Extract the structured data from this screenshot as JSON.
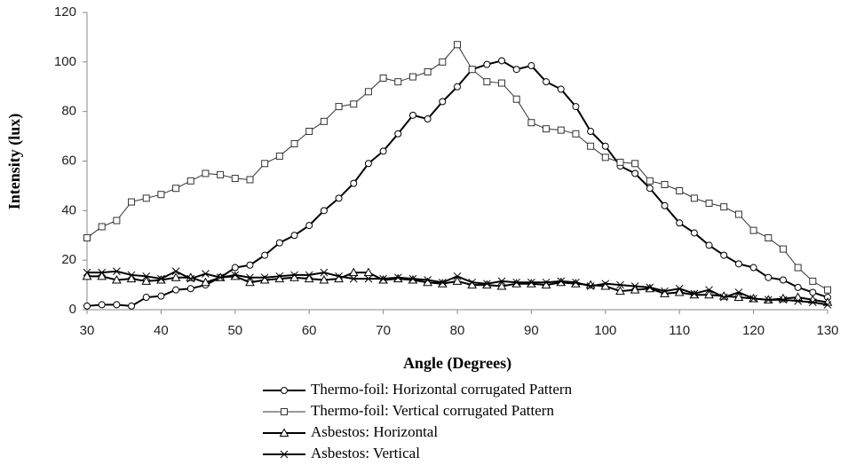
{
  "chart_data": {
    "type": "line",
    "x_label": "Angle (Degrees)",
    "y_label": "Intensity (lux)",
    "x": [
      30,
      32,
      34,
      36,
      38,
      40,
      42,
      44,
      46,
      48,
      50,
      52,
      54,
      56,
      58,
      60,
      62,
      64,
      66,
      68,
      70,
      72,
      74,
      76,
      78,
      80,
      82,
      84,
      86,
      88,
      90,
      92,
      94,
      96,
      98,
      100,
      102,
      104,
      106,
      108,
      110,
      112,
      114,
      116,
      118,
      120,
      122,
      124,
      126,
      128,
      130
    ],
    "xlim": [
      30,
      130
    ],
    "xticks": [
      30,
      40,
      50,
      60,
      70,
      80,
      90,
      100,
      110,
      120,
      130
    ],
    "ylim": [
      0,
      120
    ],
    "yticks": [
      0,
      20,
      40,
      60,
      80,
      100,
      120
    ],
    "grid": false,
    "legend": "bottom",
    "series": [
      {
        "name": "Thermo-foil: Horizontal corrugated Pattern",
        "color": "#000000",
        "line_width": 2,
        "marker": "circle",
        "values": [
          1.5,
          2,
          2,
          1.5,
          5,
          5.5,
          8,
          8.5,
          10,
          13,
          17,
          18,
          22,
          27,
          30,
          34,
          40,
          45,
          51,
          59,
          64,
          71,
          78.5,
          77,
          84,
          90,
          97,
          99,
          100.5,
          97,
          98.5,
          92,
          89,
          82,
          72,
          66,
          58,
          55,
          49,
          42,
          35,
          31,
          26,
          22,
          18.5,
          17,
          13,
          12,
          9,
          7,
          5
        ]
      },
      {
        "name": "Thermo-foil: Vertical corrugated Pattern",
        "color": "#333333",
        "line_width": 1,
        "marker": "square",
        "values": [
          29,
          33.5,
          36,
          43.5,
          45,
          46.5,
          49,
          52,
          55,
          54.5,
          53,
          52.5,
          59,
          62,
          67,
          72,
          76,
          82,
          83,
          88,
          93.5,
          92,
          94,
          96,
          100,
          107,
          97,
          92,
          91.5,
          85,
          75.5,
          73,
          72.5,
          71,
          66,
          61.5,
          59.5,
          59,
          52,
          50.5,
          48,
          45,
          43,
          41.5,
          38.5,
          32,
          29,
          24.5,
          17,
          11.5,
          8
        ]
      },
      {
        "name": "Asbestos: Horizontal",
        "color": "#000000",
        "line_width": 2,
        "marker": "triangle",
        "values": [
          13.5,
          13.5,
          12,
          12.5,
          11.5,
          12,
          13,
          13,
          11,
          13,
          13.5,
          11,
          12,
          12.5,
          13,
          12.5,
          12,
          12.5,
          15,
          15,
          12,
          12.5,
          12,
          11,
          10.5,
          11.5,
          10,
          10,
          9.5,
          10.5,
          10.5,
          10,
          11,
          10.5,
          10,
          9.5,
          7.5,
          8,
          8.5,
          6.5,
          7,
          6,
          6,
          5.5,
          5,
          4.5,
          4,
          4.5,
          5,
          4,
          3
        ]
      },
      {
        "name": "Asbestos: Vertical",
        "color": "#000000",
        "line_width": 2,
        "marker": "cross",
        "values": [
          15,
          15,
          15.5,
          14,
          13.5,
          12.5,
          15.5,
          12.5,
          14.5,
          13,
          14,
          13,
          13,
          13.5,
          14,
          14,
          15,
          13.5,
          12.5,
          12.5,
          12.5,
          13,
          12.5,
          12,
          11,
          13.5,
          11,
          10.5,
          11.5,
          11,
          11,
          11,
          11.5,
          11,
          9.5,
          10.5,
          10,
          9.5,
          9,
          7.5,
          8.5,
          6.5,
          8,
          5,
          7,
          4.5,
          4,
          4,
          3.5,
          3,
          2
        ]
      }
    ]
  }
}
